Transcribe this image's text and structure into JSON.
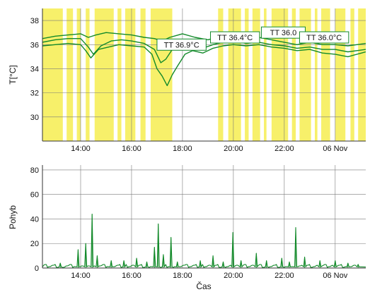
{
  "colors": {
    "background": "#ffffff",
    "activity_band": "#f7f06a",
    "grid": "#7a7a7a",
    "series": "#138a2a",
    "label_border": "#138a2a"
  },
  "chart_data": [
    {
      "id": "temperature",
      "type": "line",
      "ylabel": "T[°C]",
      "ylim": [
        28,
        39
      ],
      "yticks": [
        "30",
        "32",
        "34",
        "36",
        "38"
      ],
      "ytick_values": [
        30,
        32,
        34,
        36,
        38
      ],
      "x_range_hours": [
        12.5,
        25.2
      ],
      "xticks": [
        "14:00",
        "16:00",
        "18:00",
        "20:00",
        "22:00",
        "06 Nov"
      ],
      "xtick_hours": [
        14,
        16,
        18,
        20,
        22,
        24
      ],
      "grid": true,
      "activity_bands_hours": [
        [
          12.5,
          13.3
        ],
        [
          13.45,
          13.7
        ],
        [
          13.85,
          14.0
        ],
        [
          14.2,
          14.35
        ],
        [
          14.55,
          15.3
        ],
        [
          15.45,
          15.6
        ],
        [
          15.75,
          16.15
        ],
        [
          16.35,
          16.55
        ],
        [
          16.75,
          17.6
        ],
        [
          19.4,
          19.6
        ],
        [
          19.8,
          20.3
        ],
        [
          20.45,
          20.6
        ],
        [
          20.75,
          21.05
        ],
        [
          21.2,
          21.3
        ],
        [
          21.5,
          22.15
        ],
        [
          22.3,
          22.45
        ],
        [
          22.6,
          23.05
        ],
        [
          23.2,
          23.3
        ],
        [
          23.45,
          23.8
        ],
        [
          24.0,
          24.4
        ],
        [
          24.6,
          24.75
        ],
        [
          24.9,
          25.2
        ]
      ],
      "series": [
        {
          "x": [
            12.5,
            13.0,
            13.5,
            14.0,
            14.3,
            14.6,
            15.0,
            15.5,
            16.0,
            16.5,
            16.9,
            17.2,
            17.5,
            18.0,
            18.5,
            19.0,
            19.5,
            20.0,
            20.5,
            21.0,
            21.5,
            22.0,
            22.5,
            23.0,
            23.5,
            24.0,
            24.5,
            25.2
          ],
          "values": [
            36.5,
            36.7,
            36.8,
            36.9,
            36.6,
            36.8,
            37.0,
            36.9,
            36.8,
            36.6,
            36.5,
            36.3,
            36.6,
            36.9,
            36.6,
            36.4,
            36.7,
            36.7,
            36.5,
            36.6,
            36.4,
            36.2,
            36.0,
            36.2,
            36.0,
            36.0,
            35.9,
            36.1
          ]
        },
        {
          "x": [
            12.5,
            13.0,
            13.5,
            14.0,
            14.3,
            14.5,
            14.8,
            15.2,
            15.6,
            16.0,
            16.5,
            16.9,
            17.15,
            17.35,
            17.6,
            18.0,
            18.4,
            18.8,
            19.2,
            19.6,
            20.0,
            20.5,
            21.0,
            21.5,
            22.0,
            22.5,
            23.0,
            23.5,
            24.0,
            24.5,
            25.2
          ],
          "values": [
            36.2,
            36.4,
            36.5,
            36.5,
            35.8,
            35.2,
            35.9,
            36.3,
            36.4,
            36.3,
            36.1,
            35.6,
            34.5,
            34.8,
            35.6,
            36.0,
            35.9,
            35.7,
            36.0,
            36.2,
            36.3,
            36.1,
            36.2,
            36.0,
            35.9,
            35.7,
            35.8,
            35.6,
            35.6,
            35.4,
            35.6
          ]
        },
        {
          "x": [
            12.5,
            13.0,
            13.5,
            14.0,
            14.2,
            14.4,
            14.7,
            15.1,
            15.5,
            16.0,
            16.5,
            16.8,
            17.0,
            17.2,
            17.4,
            17.6,
            17.8,
            18.1,
            18.4,
            18.8,
            19.2,
            19.6,
            20.0,
            20.5,
            21.0,
            21.5,
            22.0,
            22.5,
            23.0,
            23.5,
            24.0,
            24.5,
            25.2
          ],
          "values": [
            35.9,
            36.0,
            36.1,
            36.0,
            35.5,
            34.9,
            35.6,
            35.8,
            36.0,
            35.9,
            35.8,
            35.2,
            34.0,
            33.4,
            32.6,
            33.5,
            34.2,
            35.2,
            35.5,
            35.3,
            35.7,
            35.9,
            36.0,
            35.9,
            36.0,
            35.8,
            35.7,
            35.5,
            35.6,
            35.3,
            35.2,
            35.0,
            35.4
          ]
        }
      ],
      "annotations": [
        {
          "text": "TT 36.9°C",
          "x": 17.0,
          "y": 36.0
        },
        {
          "text": "TT 36.4°C",
          "x": 19.1,
          "y": 36.6
        },
        {
          "text": "TT 36.0",
          "x": 21.1,
          "y": 37.0
        },
        {
          "text": "TT 36.0°C",
          "x": 22.6,
          "y": 36.6
        }
      ]
    },
    {
      "id": "movement",
      "type": "line",
      "xlabel": "Čas",
      "ylabel": "Pohyb",
      "ylim": [
        0,
        84
      ],
      "yticks": [
        "0",
        "20",
        "40",
        "60",
        "80"
      ],
      "ytick_values": [
        0,
        20,
        40,
        60,
        80
      ],
      "x_range_hours": [
        12.5,
        25.2
      ],
      "xticks": [
        "14:00",
        "16:00",
        "18:00",
        "20:00",
        "22:00",
        "06 Nov"
      ],
      "xtick_hours": [
        14,
        16,
        18,
        20,
        22,
        24
      ],
      "grid": true,
      "spikes": [
        {
          "x": 13.2,
          "value": 4
        },
        {
          "x": 13.9,
          "value": 15
        },
        {
          "x": 14.2,
          "value": 20
        },
        {
          "x": 14.45,
          "value": 44
        },
        {
          "x": 14.65,
          "value": 10
        },
        {
          "x": 15.2,
          "value": 6
        },
        {
          "x": 15.7,
          "value": 6
        },
        {
          "x": 16.2,
          "value": 8
        },
        {
          "x": 16.6,
          "value": 5
        },
        {
          "x": 16.9,
          "value": 17
        },
        {
          "x": 17.05,
          "value": 36
        },
        {
          "x": 17.25,
          "value": 11
        },
        {
          "x": 17.55,
          "value": 25
        },
        {
          "x": 17.8,
          "value": 5
        },
        {
          "x": 18.7,
          "value": 6
        },
        {
          "x": 19.2,
          "value": 10
        },
        {
          "x": 19.6,
          "value": 5
        },
        {
          "x": 19.98,
          "value": 29
        },
        {
          "x": 20.3,
          "value": 6
        },
        {
          "x": 20.9,
          "value": 12
        },
        {
          "x": 21.3,
          "value": 6
        },
        {
          "x": 21.9,
          "value": 8
        },
        {
          "x": 22.2,
          "value": 5
        },
        {
          "x": 22.45,
          "value": 33
        },
        {
          "x": 22.8,
          "value": 9
        },
        {
          "x": 23.4,
          "value": 6
        },
        {
          "x": 24.0,
          "value": 6
        },
        {
          "x": 24.5,
          "value": 4
        },
        {
          "x": 24.9,
          "value": 3
        }
      ]
    }
  ]
}
